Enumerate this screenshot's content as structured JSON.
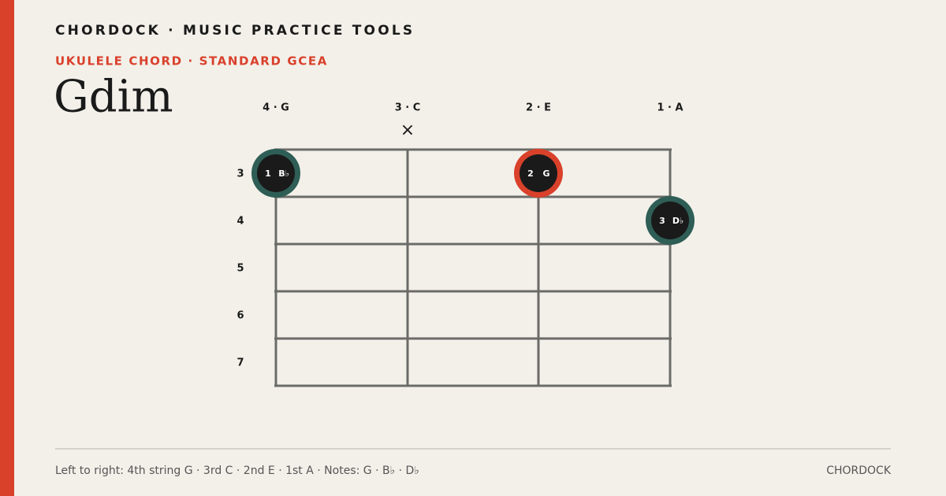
{
  "header": {
    "brand": "CHORDOCK · MUSIC PRACTICE TOOLS",
    "eyebrow": "UKULELE CHORD · STANDARD GCEA",
    "title": "Gdim"
  },
  "diagram": {
    "strings": [
      "4 · G",
      "3 · C",
      "2 · E",
      "1 · A"
    ],
    "mute": "×",
    "frets": [
      "3",
      "4",
      "5",
      "6",
      "7"
    ],
    "dots": [
      {
        "finger": "1",
        "note": "B♭"
      },
      {
        "finger": "2",
        "note": "G"
      },
      {
        "finger": "3",
        "note": "D♭"
      }
    ]
  },
  "footer": {
    "caption": "Left to right: 4th string G · 3rd C · 2nd E · 1st A · Notes: G · B♭ · D♭",
    "brand": "CHORDOCK"
  }
}
